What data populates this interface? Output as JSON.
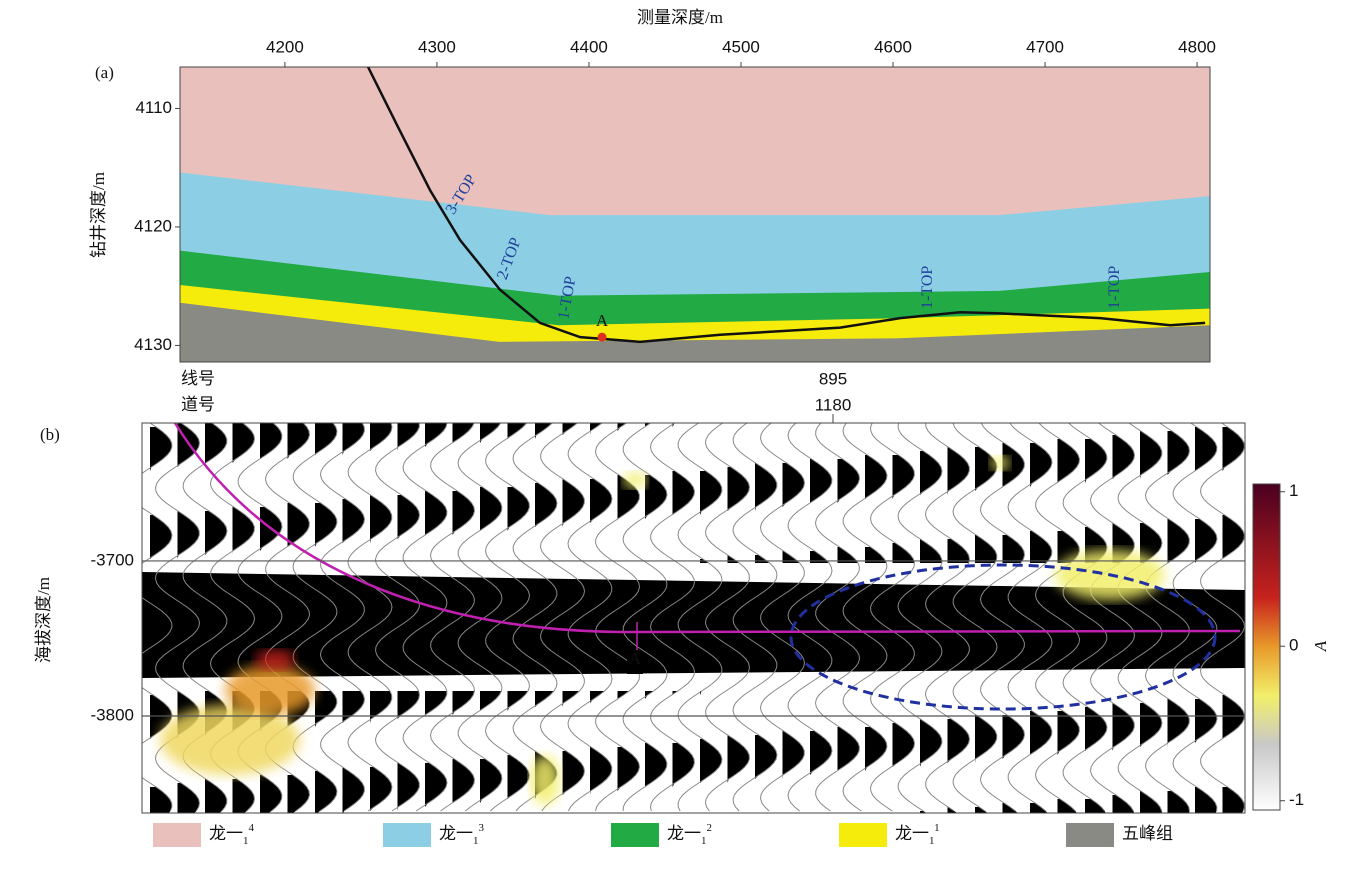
{
  "chart_data": [
    {
      "type": "layers",
      "panel_label": "(a)",
      "xlabel": "测量深度/m",
      "ylabel": "钻井深度/m",
      "xlim": [
        4131,
        4808.5
      ],
      "xticks": [
        4200,
        4300,
        4400,
        4500,
        4600,
        4700,
        4800
      ],
      "ylim": [
        4106.5,
        4131.4
      ],
      "yticks": [
        4110,
        4120,
        4130
      ],
      "layers": [
        {
          "name": "龙一",
          "sub": "1",
          "sup": "4",
          "color": "#e9c0bc"
        },
        {
          "name": "龙一",
          "sub": "1",
          "sup": "3",
          "color": "#8ccfe4",
          "x": [
            4131,
            4374,
            4670,
            4808.5
          ],
          "top": [
            4115.4,
            4119.0,
            4119.0,
            4117.4
          ]
        },
        {
          "name": "龙一",
          "sub": "1",
          "sup": "2",
          "color": "#22aa44",
          "x": [
            4131,
            4380,
            4670,
            4808.5
          ],
          "top": [
            4122.0,
            4125.8,
            4125.4,
            4123.8
          ]
        },
        {
          "name": "龙一",
          "sub": "1",
          "sup": "1",
          "color": "#f6ec0c",
          "x": [
            4131,
            4380,
            4604,
            4808.5
          ],
          "top": [
            4124.9,
            4128.3,
            4127.7,
            4126.9
          ]
        },
        {
          "name": "五峰组",
          "color": "#8a8a84",
          "x": [
            4131,
            4341,
            4604,
            4808.5
          ],
          "top": [
            4126.4,
            4129.7,
            4129.4,
            4128.3
          ]
        }
      ],
      "well": {
        "color": "#111111",
        "x": [
          4254.7,
          4275.7,
          4295.5,
          4315.2,
          4341.5,
          4367.8,
          4394.2,
          4433.6,
          4486.3,
          4538.9,
          4565.2,
          4604.7,
          4644.2,
          4670.5,
          4736.3,
          4782.3,
          4805.3
        ],
        "y": [
          4106.5,
          4111.9,
          4116.9,
          4121.1,
          4125.3,
          4128.1,
          4129.3,
          4129.7,
          4129.1,
          4128.7,
          4128.5,
          4127.7,
          4127.2,
          4127.3,
          4127.7,
          4128.3,
          4128.1
        ]
      },
      "point": {
        "label": "A",
        "x": 4408.6,
        "y": 4129.3,
        "color": "#e03020"
      },
      "annotations": [
        {
          "text": "3-TOP",
          "x": 4316.5,
          "y": 4117.3
        },
        {
          "text": "2-TOP",
          "x": 4348.1,
          "y": 4122.7
        },
        {
          "text": "1-TOP",
          "x": 4386.3,
          "y": 4126.0
        },
        {
          "text": "1-TOP",
          "x": 4623.1,
          "y": 4125.1
        },
        {
          "text": "1-TOP",
          "x": 4746.1,
          "y": 4125.1
        }
      ]
    },
    {
      "type": "seismic",
      "panel_label": "(b)",
      "ylabel": "海拔深度/m",
      "ylim": [
        -3862.6,
        -3611
      ],
      "yticks": [
        -3700,
        -3800
      ],
      "trace_labels": [
        "线号",
        "道号"
      ],
      "trace_values": [
        895,
        1180
      ],
      "marker": "A",
      "colorbar": {
        "label": "A",
        "lim": [
          -1.06,
          1.05
        ],
        "ticks": [
          1,
          0,
          -1
        ]
      }
    }
  ]
}
